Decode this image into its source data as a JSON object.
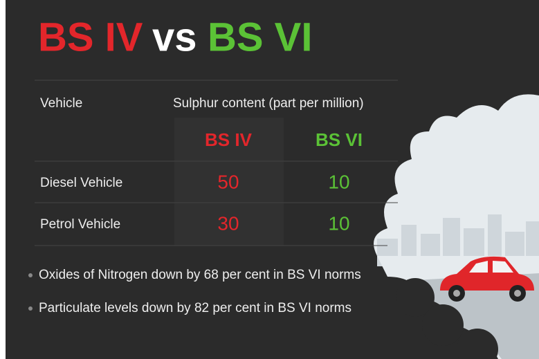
{
  "header": {
    "title_left": "BS IV",
    "title_mid": "vs",
    "title_right": "BS VI"
  },
  "table": {
    "header": [
      "Vehicle",
      "Sulphur content (part per million)"
    ],
    "subheader": [
      "BS IV",
      "BS VI"
    ],
    "rows": [
      [
        "Diesel Vehicle",
        "50",
        "10"
      ],
      [
        "Petrol Vehicle",
        "30",
        "10"
      ]
    ]
  },
  "bullets": [
    "Oxides of Nitrogen down by 68 per cent in BS VI norms",
    "Particulate levels down by 82 per cent in BS VI norms"
  ]
}
